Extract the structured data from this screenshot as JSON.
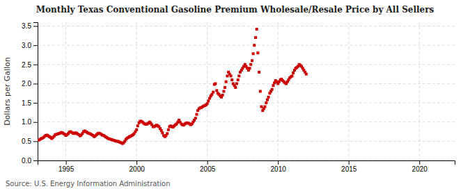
{
  "chart_data": {
    "type": "scatter",
    "title": "Monthly Texas Conventional Gasoline Premium Wholesale/Resale Price by All Sellers",
    "ylabel": "Dollars per Gallon",
    "source": "Source: U.S. Energy Information Administration",
    "color": "#cc0000",
    "marker": "square",
    "grid": true,
    "xlim": [
      1993.0,
      2022.5
    ],
    "ylim": [
      0.0,
      3.6
    ],
    "xticks": [
      1995,
      2000,
      2005,
      2010,
      2015,
      2020
    ],
    "yticks": [
      {
        "value": 0.0,
        "label": "0.0"
      },
      0.5,
      {
        "value": 1.0,
        "label": "1.0"
      },
      1.5,
      {
        "value": 2.0,
        "label": "2.0"
      },
      2.5,
      {
        "value": 3.0,
        "label": "3.0"
      },
      3.5
    ],
    "x": [
      1993.08,
      1993.17,
      1993.25,
      1993.33,
      1993.42,
      1993.5,
      1993.58,
      1993.67,
      1993.75,
      1993.83,
      1993.92,
      1994.0,
      1994.08,
      1994.17,
      1994.25,
      1994.33,
      1994.42,
      1994.5,
      1994.58,
      1994.67,
      1994.75,
      1994.83,
      1994.92,
      1995.0,
      1995.08,
      1995.17,
      1995.25,
      1995.33,
      1995.42,
      1995.5,
      1995.58,
      1995.67,
      1995.75,
      1995.83,
      1995.92,
      1996.0,
      1996.08,
      1996.17,
      1996.25,
      1996.33,
      1996.42,
      1996.5,
      1996.58,
      1996.67,
      1996.75,
      1996.83,
      1996.92,
      1997.0,
      1997.08,
      1997.17,
      1997.25,
      1997.33,
      1997.42,
      1997.5,
      1997.58,
      1997.67,
      1997.75,
      1997.83,
      1997.92,
      1998.0,
      1998.08,
      1998.17,
      1998.25,
      1998.33,
      1998.42,
      1998.5,
      1998.58,
      1998.67,
      1998.75,
      1998.83,
      1998.92,
      1999.0,
      1999.08,
      1999.17,
      1999.25,
      1999.33,
      1999.42,
      1999.5,
      1999.58,
      1999.67,
      1999.75,
      1999.83,
      1999.92,
      2000.0,
      2000.08,
      2000.17,
      2000.25,
      2000.33,
      2000.42,
      2000.5,
      2000.58,
      2000.67,
      2000.75,
      2000.83,
      2000.92,
      2001.0,
      2001.08,
      2001.17,
      2001.25,
      2001.33,
      2001.42,
      2001.5,
      2001.58,
      2001.67,
      2001.75,
      2001.83,
      2001.92,
      2002.0,
      2002.08,
      2002.17,
      2002.25,
      2002.33,
      2002.42,
      2002.5,
      2002.58,
      2002.67,
      2002.75,
      2002.83,
      2002.92,
      2003.0,
      2003.08,
      2003.17,
      2003.25,
      2003.33,
      2003.42,
      2003.5,
      2003.58,
      2003.67,
      2003.75,
      2003.83,
      2003.92,
      2004.0,
      2004.08,
      2004.17,
      2004.25,
      2004.33,
      2004.42,
      2004.5,
      2004.58,
      2004.67,
      2004.75,
      2004.83,
      2004.92,
      2005.0,
      2005.08,
      2005.17,
      2005.25,
      2005.33,
      2005.42,
      2005.5,
      2005.58,
      2005.67,
      2005.75,
      2005.83,
      2005.92,
      2006.0,
      2006.08,
      2006.17,
      2006.25,
      2006.33,
      2006.42,
      2006.5,
      2006.58,
      2006.67,
      2006.75,
      2006.83,
      2006.92,
      2007.0,
      2007.08,
      2007.17,
      2007.25,
      2007.33,
      2007.42,
      2007.5,
      2007.58,
      2007.67,
      2007.75,
      2007.83,
      2007.92,
      2008.0,
      2008.08,
      2008.17,
      2008.25,
      2008.33,
      2008.42,
      2008.5,
      2008.58,
      2008.67,
      2008.75,
      2008.83,
      2008.92,
      2009.0,
      2009.08,
      2009.17,
      2009.25,
      2009.33,
      2009.42,
      2009.5,
      2009.58,
      2009.67,
      2009.75,
      2009.83,
      2009.92,
      2010.0,
      2010.08,
      2010.17,
      2010.25,
      2010.33,
      2010.42,
      2010.5,
      2010.58,
      2010.67,
      2010.75,
      2010.83,
      2010.92,
      2011.0,
      2011.08,
      2011.17,
      2011.25,
      2011.33,
      2011.42,
      2011.5,
      2011.58,
      2011.67,
      2011.75,
      2011.83,
      2011.92,
      2012.0
    ],
    "values": [
      0.53,
      0.55,
      0.57,
      0.58,
      0.6,
      0.63,
      0.65,
      0.66,
      0.64,
      0.62,
      0.6,
      0.57,
      0.6,
      0.63,
      0.67,
      0.68,
      0.69,
      0.7,
      0.71,
      0.73,
      0.72,
      0.7,
      0.68,
      0.65,
      0.67,
      0.7,
      0.74,
      0.75,
      0.73,
      0.71,
      0.7,
      0.72,
      0.71,
      0.69,
      0.67,
      0.64,
      0.66,
      0.7,
      0.75,
      0.77,
      0.75,
      0.73,
      0.71,
      0.7,
      0.69,
      0.67,
      0.65,
      0.62,
      0.64,
      0.67,
      0.7,
      0.71,
      0.7,
      0.68,
      0.66,
      0.65,
      0.63,
      0.61,
      0.59,
      0.57,
      0.56,
      0.55,
      0.54,
      0.53,
      0.52,
      0.51,
      0.5,
      0.5,
      0.49,
      0.47,
      0.46,
      0.44,
      0.46,
      0.5,
      0.55,
      0.58,
      0.6,
      0.62,
      0.63,
      0.65,
      0.67,
      0.7,
      0.75,
      0.8,
      0.9,
      0.98,
      1.02,
      1.02,
      1.0,
      0.97,
      0.95,
      0.94,
      0.95,
      0.97,
      1.0,
      0.97,
      0.93,
      0.88,
      0.88,
      0.9,
      0.92,
      0.9,
      0.88,
      0.83,
      0.78,
      0.72,
      0.65,
      0.62,
      0.65,
      0.7,
      0.8,
      0.88,
      0.9,
      0.88,
      0.87,
      0.9,
      0.93,
      0.95,
      1.0,
      1.05,
      1.0,
      0.95,
      0.93,
      0.92,
      0.95,
      0.97,
      0.98,
      0.97,
      0.95,
      0.93,
      0.95,
      1.0,
      1.05,
      1.1,
      1.2,
      1.3,
      1.35,
      1.37,
      1.38,
      1.4,
      1.42,
      1.43,
      1.45,
      1.48,
      1.55,
      1.62,
      1.68,
      1.72,
      1.78,
      1.98,
      2.0,
      1.82,
      1.75,
      1.72,
      1.68,
      1.65,
      1.7,
      1.8,
      1.9,
      2.05,
      2.2,
      2.3,
      2.25,
      2.2,
      2.1,
      2.0,
      1.95,
      1.9,
      2.0,
      2.1,
      2.2,
      2.3,
      2.35,
      2.4,
      2.45,
      2.5,
      2.45,
      2.4,
      2.35,
      2.4,
      2.5,
      2.6,
      2.78,
      3.0,
      3.2,
      3.42,
      2.8,
      2.3,
      1.8,
      1.4,
      1.3,
      1.35,
      1.4,
      1.5,
      1.58,
      1.65,
      1.75,
      1.8,
      1.85,
      1.95,
      2.02,
      2.08,
      2.05,
      2.0,
      2.05,
      2.1,
      2.12,
      2.08,
      2.05,
      2.02,
      2.0,
      2.05,
      2.1,
      2.15,
      2.18,
      2.2,
      2.28,
      2.35,
      2.4,
      2.42,
      2.45,
      2.5,
      2.48,
      2.45,
      2.4,
      2.35,
      2.3,
      2.25
    ]
  }
}
